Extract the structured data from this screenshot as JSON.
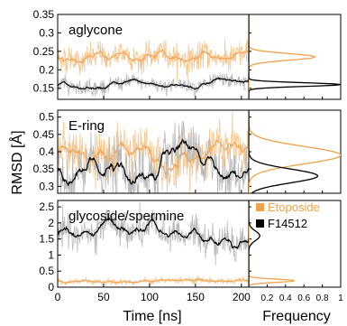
{
  "chart_data": [
    {
      "type": "line",
      "panel": "aglycone",
      "label": "aglycone",
      "ylim": [
        0.12,
        0.35
      ],
      "yticks": [
        "0.35",
        "0.3",
        "0.25",
        "0.2",
        "0.15"
      ],
      "ytick_values": [
        0.35,
        0.3,
        0.25,
        0.2,
        0.15
      ],
      "xlim": [
        0,
        208
      ],
      "series": [
        {
          "name": "Etoposide",
          "color": "#f0a24a",
          "mean": 0.235,
          "noise": 0.018,
          "smooth_noise": 0.008
        },
        {
          "name": "F14512",
          "color": "#000000",
          "mean": 0.16,
          "noise": 0.01,
          "smooth_noise": 0.004
        }
      ],
      "histogram": {
        "xlim": [
          0,
          1
        ],
        "series": [
          {
            "name": "Etoposide",
            "color": "#f0a24a",
            "center": 0.235,
            "width": 0.009,
            "peak": 0.72
          },
          {
            "name": "F14512",
            "color": "#000000",
            "center": 0.16,
            "width": 0.005,
            "peak": 1.0
          }
        ]
      }
    },
    {
      "type": "line",
      "panel": "E-ring",
      "label": "E-ring",
      "ylim": [
        0.28,
        0.52
      ],
      "yticks": [
        "0.5",
        "0.45",
        "0.4",
        "0.35",
        "0.3"
      ],
      "ytick_values": [
        0.5,
        0.45,
        0.4,
        0.35,
        0.3
      ],
      "xlim": [
        0,
        208
      ],
      "series": [
        {
          "name": "Etoposide",
          "color": "#f0a24a",
          "mean": 0.4,
          "noise": 0.035,
          "smooth_noise": 0.015
        },
        {
          "name": "F14512",
          "color": "#000000",
          "mean": 0.34,
          "noise": 0.035,
          "smooth_noise": 0.02
        }
      ],
      "histogram": {
        "xlim": [
          0,
          1
        ],
        "series": [
          {
            "name": "Etoposide",
            "color": "#f0a24a",
            "center": 0.39,
            "width": 0.025,
            "peak": 1.0
          },
          {
            "name": "F14512",
            "color": "#000000",
            "center": 0.33,
            "width": 0.02,
            "peak": 0.75
          }
        ]
      }
    },
    {
      "type": "line",
      "panel": "glycoside/spermine",
      "label": "glycoside/spermine",
      "ylim": [
        0,
        2.7
      ],
      "yticks": [
        "2.5",
        "2",
        "1.5",
        "1",
        "0.5",
        "0"
      ],
      "ytick_values": [
        2.5,
        2.0,
        1.5,
        1.0,
        0.5,
        0.0
      ],
      "xlim": [
        0,
        208
      ],
      "xticks": [
        "0",
        "50",
        "100",
        "150",
        "200"
      ],
      "xtick_values": [
        0,
        50,
        100,
        150,
        200
      ],
      "series": [
        {
          "name": "Etoposide",
          "color": "#f0a24a",
          "mean": 0.2,
          "noise": 0.05,
          "smooth_noise": 0.02
        },
        {
          "name": "F14512",
          "color": "#000000",
          "mean": 1.6,
          "noise": 0.25,
          "smooth_noise": 0.12
        }
      ],
      "histogram": {
        "xlim": [
          0,
          1
        ],
        "xticks": [
          "0.2",
          "0.4",
          "0.6",
          "0.8",
          "1"
        ],
        "xtick_values": [
          0.2,
          0.4,
          0.6,
          0.8,
          1.0
        ],
        "series": [
          {
            "name": "Etoposide",
            "color": "#f0a24a",
            "center": 0.2,
            "width": 0.05,
            "peak": 0.5
          },
          {
            "name": "F14512",
            "color": "#000000",
            "center": 1.6,
            "width": 0.15,
            "peak": 0.12
          }
        ]
      }
    }
  ],
  "labels": {
    "ylabel": "RMSD [Å]",
    "xlabel": "Time [ns]",
    "hist_xlabel": "Frequency"
  },
  "legend": [
    {
      "name": "Etoposide",
      "color": "#f0a24a"
    },
    {
      "name": "F14512",
      "color": "#000000"
    }
  ],
  "colors": {
    "etoposide": "#f0a24a",
    "f14512": "#000000",
    "raw_black": "#b8b8b8",
    "raw_orange": "#f6c690"
  }
}
